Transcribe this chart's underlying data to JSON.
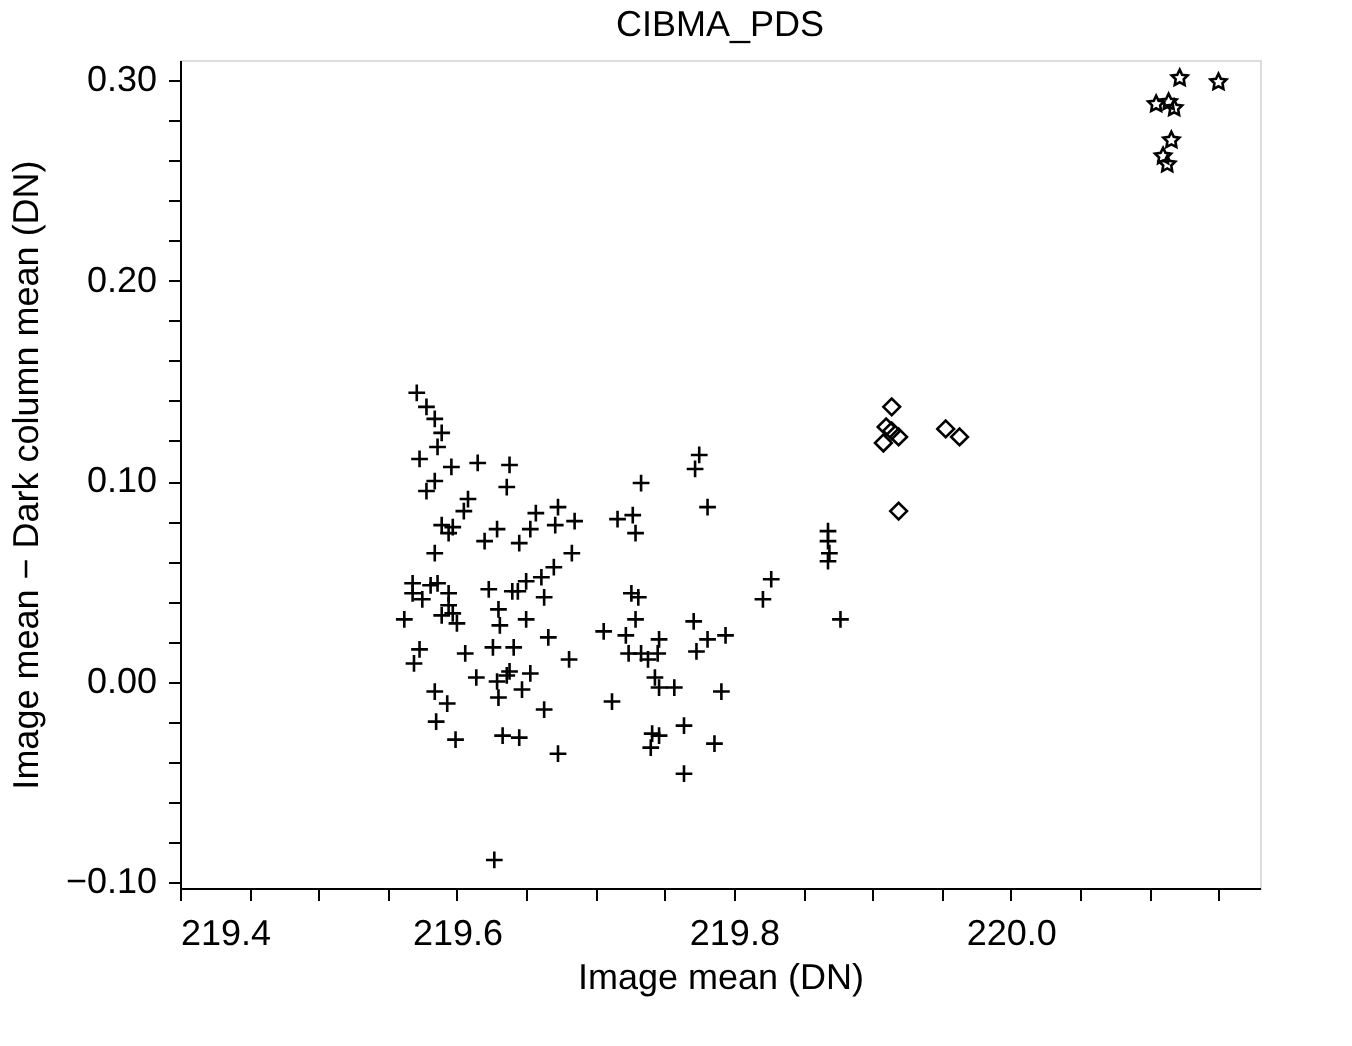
{
  "chart_data": {
    "type": "scatter",
    "title": "CIBMA_PDS",
    "xlabel": "Image mean (DN)",
    "ylabel": "Image mean − Dark column mean (DN)",
    "xlim": [
      219.4,
      220.18
    ],
    "ylim": [
      -0.103,
      0.31
    ],
    "xticks": [
      219.4,
      {
        "value": 219.45,
        "label": null
      },
      {
        "value": 219.5,
        "label": null
      },
      {
        "value": 219.55,
        "label": null
      },
      219.6,
      {
        "value": 219.65,
        "label": null
      },
      {
        "value": 219.7,
        "label": null
      },
      {
        "value": 219.75,
        "label": null
      },
      219.8,
      {
        "value": 219.85,
        "label": null
      },
      {
        "value": 219.9,
        "label": null
      },
      {
        "value": 219.95,
        "label": null
      },
      {
        "value": 220.0,
        "label": "220.0"
      },
      {
        "value": 220.05,
        "label": null
      },
      {
        "value": 220.1,
        "label": null
      },
      {
        "value": 220.15,
        "label": null
      }
    ],
    "yticks": [
      {
        "value": -0.1,
        "label": "−0.10"
      },
      {
        "value": -0.08,
        "label": null
      },
      {
        "value": -0.06,
        "label": null
      },
      {
        "value": -0.04,
        "label": null
      },
      {
        "value": -0.02,
        "label": null
      },
      {
        "value": 0.0,
        "label": "0.00"
      },
      {
        "value": 0.02,
        "label": null
      },
      {
        "value": 0.04,
        "label": null
      },
      {
        "value": 0.06,
        "label": null
      },
      {
        "value": 0.08,
        "label": null
      },
      {
        "value": 0.1,
        "label": "0.10"
      },
      {
        "value": 0.12,
        "label": null
      },
      {
        "value": 0.14,
        "label": null
      },
      {
        "value": 0.16,
        "label": null
      },
      {
        "value": 0.18,
        "label": null
      },
      {
        "value": 0.2,
        "label": "0.20"
      },
      {
        "value": 0.22,
        "label": null
      },
      {
        "value": 0.24,
        "label": null
      },
      {
        "value": 0.26,
        "label": null
      },
      {
        "value": 0.28,
        "label": null
      },
      {
        "value": 0.3,
        "label": "0.30"
      }
    ],
    "grid": false,
    "legend": false,
    "series": [
      {
        "color": "#000000",
        "marker": "cross",
        "x": [
          219.571,
          219.578,
          219.584,
          219.589,
          219.586,
          219.573,
          219.596,
          219.584,
          219.578,
          219.615,
          219.638,
          219.636,
          219.608,
          219.605,
          219.589,
          219.597,
          219.594,
          219.629,
          219.62,
          219.645,
          219.653,
          219.657,
          219.673,
          219.671,
          219.685,
          219.683,
          219.67,
          219.661,
          219.663,
          219.65,
          219.644,
          219.64,
          219.623,
          219.584,
          219.568,
          219.568,
          219.575,
          219.581,
          219.586,
          219.594,
          219.562,
          219.589,
          219.594,
          219.597,
          219.6,
          219.573,
          219.569,
          219.606,
          219.63,
          219.631,
          219.626,
          219.641,
          219.65,
          219.666,
          219.681,
          219.614,
          219.629,
          219.636,
          219.638,
          219.653,
          219.647,
          219.63,
          219.584,
          219.593,
          219.585,
          219.599,
          219.633,
          219.645,
          219.663,
          219.673,
          219.627,
          219.716,
          219.727,
          219.729,
          219.733,
          219.772,
          219.775,
          219.781,
          219.726,
          219.731,
          219.729,
          219.706,
          219.722,
          219.724,
          219.733,
          219.738,
          219.746,
          219.745,
          219.743,
          219.746,
          219.757,
          219.741,
          219.746,
          219.74,
          219.764,
          219.764,
          219.771,
          219.773,
          219.781,
          219.794,
          219.791,
          219.786,
          219.712,
          219.821,
          219.827,
          219.868,
          219.868,
          219.869,
          219.868,
          219.877
        ],
        "values": [
          0.144,
          0.137,
          0.131,
          0.124,
          0.117,
          0.111,
          0.107,
          0.1,
          0.095,
          0.109,
          0.108,
          0.097,
          0.091,
          0.085,
          0.078,
          0.077,
          0.074,
          0.076,
          0.07,
          0.069,
          0.076,
          0.084,
          0.087,
          0.078,
          0.08,
          0.064,
          0.057,
          0.052,
          0.042,
          0.05,
          0.045,
          0.045,
          0.046,
          0.064,
          0.049,
          0.044,
          0.041,
          0.048,
          0.049,
          0.044,
          0.031,
          0.033,
          0.038,
          0.034,
          0.029,
          0.016,
          0.009,
          0.014,
          0.036,
          0.028,
          0.017,
          0.017,
          0.031,
          0.022,
          0.011,
          0.002,
          0.0,
          0.003,
          0.005,
          0.004,
          -0.004,
          -0.008,
          -0.005,
          -0.011,
          -0.02,
          -0.029,
          -0.027,
          -0.028,
          -0.014,
          -0.036,
          -0.089,
          0.081,
          0.083,
          0.074,
          0.099,
          0.106,
          0.113,
          0.087,
          0.044,
          0.042,
          0.031,
          0.025,
          0.023,
          0.014,
          0.014,
          0.011,
          0.021,
          0.014,
          0.002,
          -0.003,
          -0.003,
          -0.026,
          -0.027,
          -0.033,
          -0.022,
          -0.046,
          0.03,
          0.015,
          0.021,
          0.023,
          -0.005,
          -0.031,
          -0.01,
          0.041,
          0.051,
          0.075,
          0.07,
          0.064,
          0.06,
          0.031
        ]
      },
      {
        "color": "#000000",
        "marker": "diamond",
        "x": [
          219.914,
          219.91,
          219.914,
          219.908,
          219.919,
          219.919,
          219.953,
          219.963
        ],
        "values": [
          0.137,
          0.127,
          0.125,
          0.119,
          0.122,
          0.085,
          0.126,
          0.122
        ]
      },
      {
        "color": "#000000",
        "marker": "star",
        "x": [
          220.105,
          220.114,
          220.118,
          220.122,
          220.15,
          220.116,
          220.11,
          220.113
        ],
        "values": [
          0.288,
          0.289,
          0.286,
          0.301,
          0.299,
          0.27,
          0.262,
          0.258
        ]
      }
    ]
  }
}
